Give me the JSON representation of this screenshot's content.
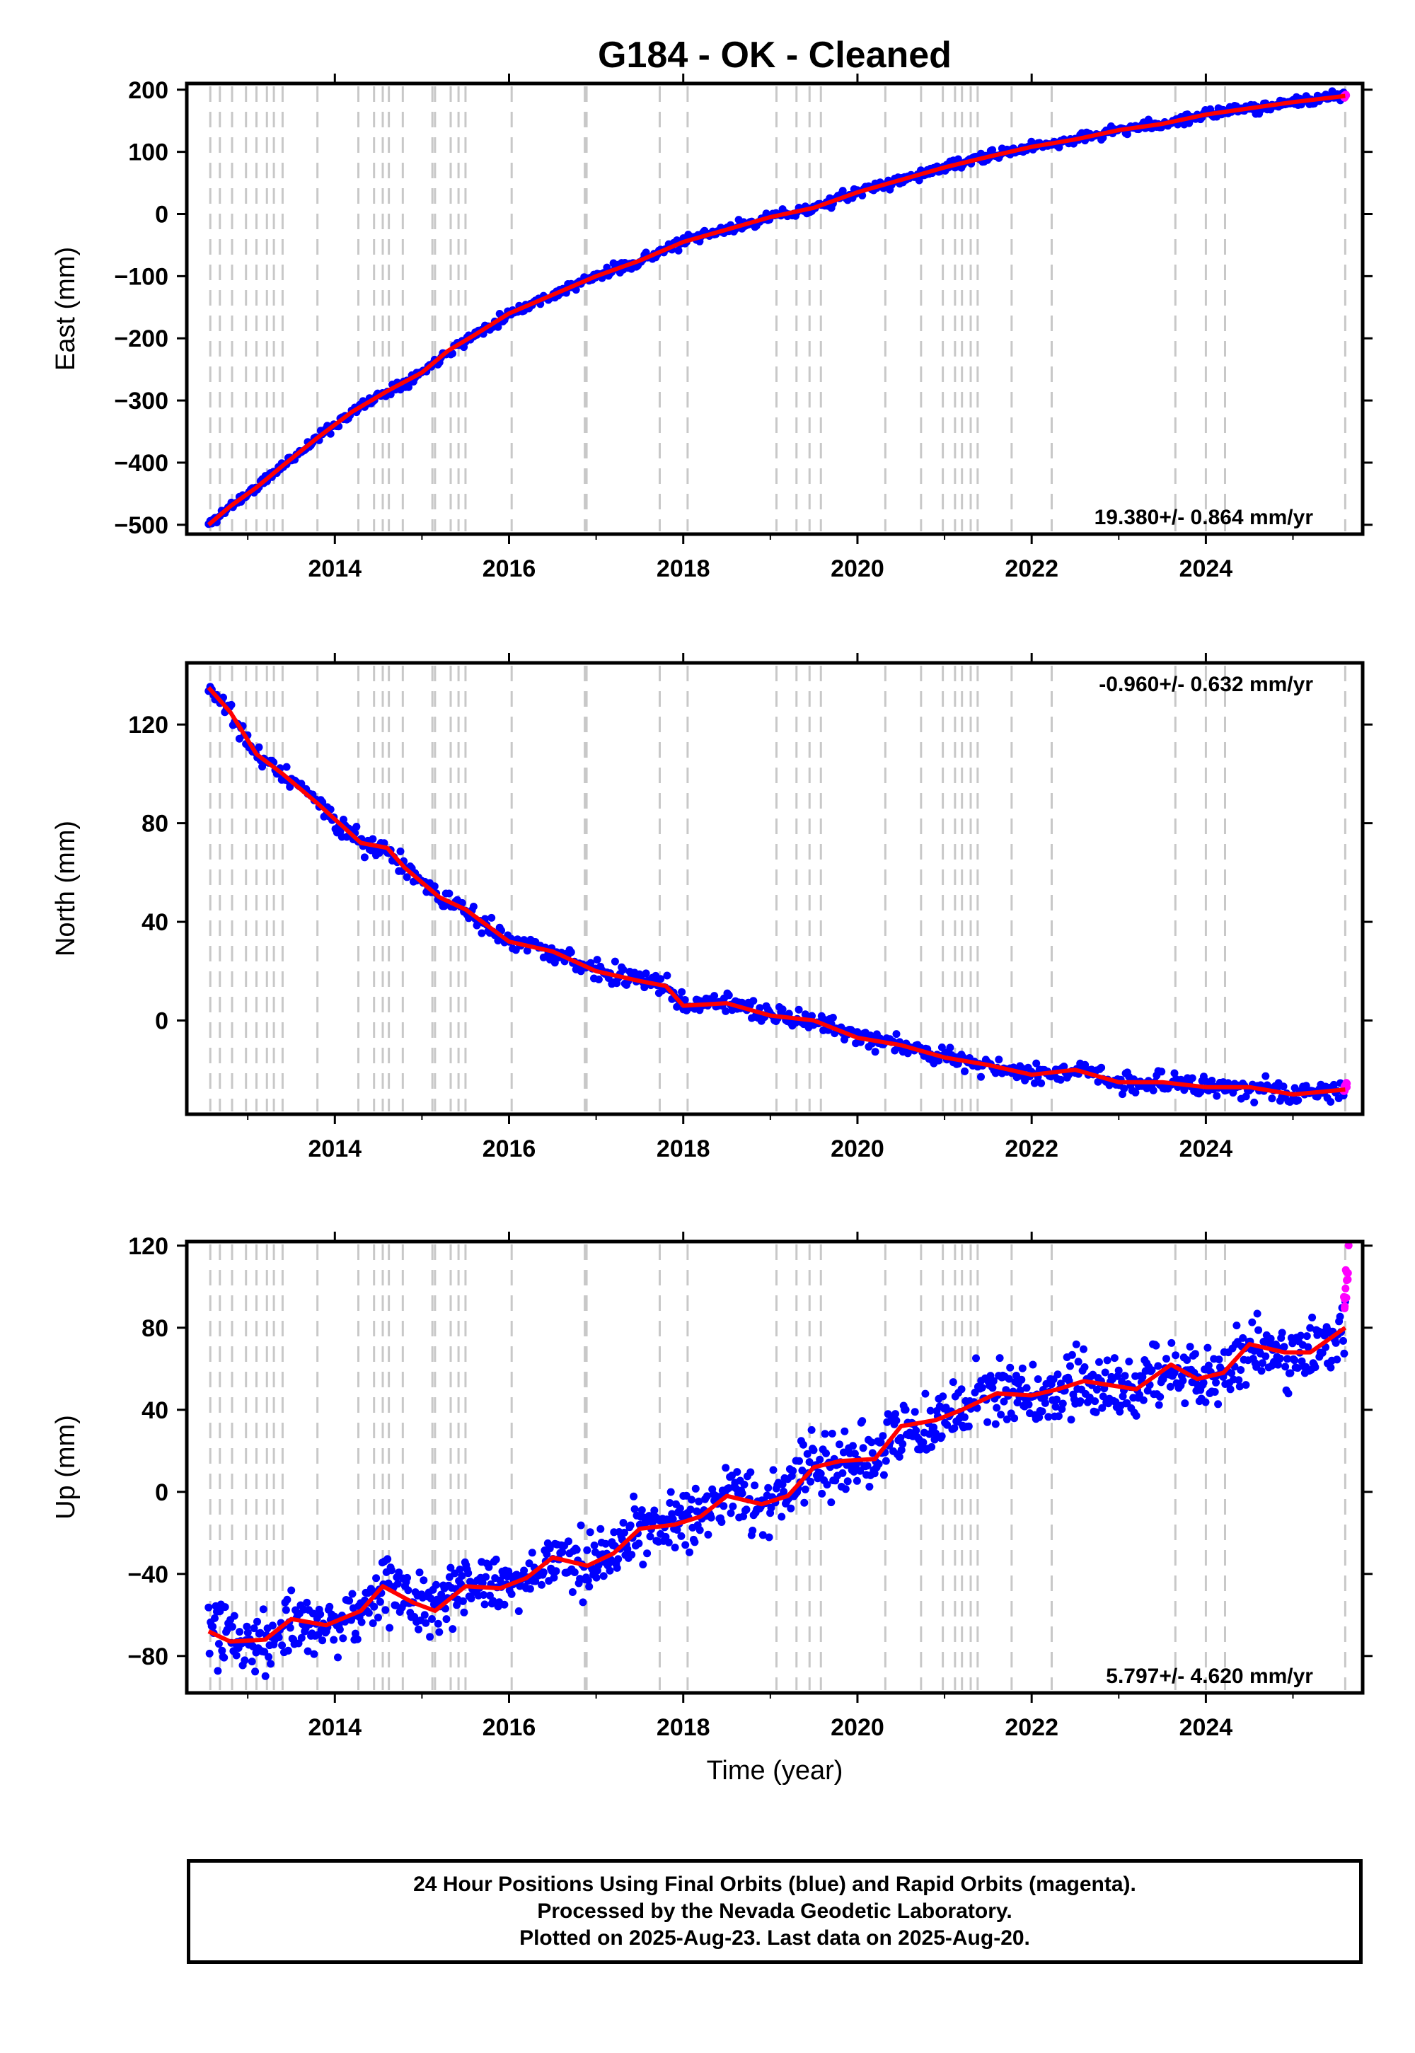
{
  "title": "G184  - OK - Cleaned",
  "xlabel": "Time (year)",
  "colors": {
    "final": "#0000ff",
    "rapid": "#ff00ff",
    "model": "#ff0000",
    "event": "#c8c8c8",
    "axis": "#000000"
  },
  "footer": {
    "line1": "24 Hour Positions Using Final Orbits (blue) and Rapid Orbits (magenta).",
    "line2": "Processed by the Nevada Geodetic Laboratory.",
    "line3": "Plotted on 2025-Aug-23. Last data on 2025-Aug-20."
  },
  "chart_data": [
    {
      "type": "scatter",
      "panel": "east",
      "title": "G184  - OK - Cleaned",
      "ylabel": "East (mm)",
      "xlim": [
        2012.3,
        2025.8
      ],
      "ylim": [
        -515,
        210
      ],
      "x_ticks": [
        2014,
        2016,
        2018,
        2020,
        2022,
        2024
      ],
      "y_ticks": [
        -500,
        -400,
        -300,
        -200,
        -100,
        0,
        100,
        200
      ],
      "rate_label": "19.380+/- 0.864 mm/yr",
      "rate_position": "bottom-right",
      "grid": false,
      "offset_lines": [
        2012.57,
        2012.68,
        2012.82,
        2012.98,
        2013.1,
        2013.22,
        2013.3,
        2013.4,
        2013.8,
        2014.27,
        2014.45,
        2014.55,
        2014.62,
        2014.78,
        2015.12,
        2015.15,
        2015.33,
        2015.42,
        2015.5,
        2016.03,
        2016.87,
        2016.89,
        2017.73,
        2018.05,
        2019.07,
        2019.3,
        2019.45,
        2019.58,
        2020.32,
        2020.73,
        2020.98,
        2021.12,
        2021.2,
        2021.3,
        2021.38,
        2021.77,
        2022.23,
        2023.65,
        2024.0,
        2024.22,
        2025.6
      ],
      "series": [
        {
          "name": "Final Orbits",
          "color": "#0000ff",
          "scatter": 6,
          "seed": 11,
          "x": [
            2012.55,
            2012.8,
            2013.1,
            2013.4,
            2013.8,
            2014.2,
            2014.6,
            2015.0,
            2015.3,
            2015.6,
            2016.0,
            2016.5,
            2017.0,
            2017.5,
            2018.0,
            2018.5,
            2019.0,
            2019.5,
            2020.0,
            2020.5,
            2021.0,
            2021.5,
            2022.0,
            2022.5,
            2023.0,
            2023.5,
            2024.0,
            2024.5,
            2025.0,
            2025.6
          ],
          "y": [
            -500,
            -470,
            -440,
            -405,
            -360,
            -318,
            -285,
            -255,
            -220,
            -195,
            -160,
            -130,
            -100,
            -75,
            -45,
            -25,
            -5,
            10,
            35,
            55,
            75,
            92,
            108,
            120,
            135,
            145,
            160,
            170,
            180,
            190
          ]
        },
        {
          "name": "Rapid Orbits",
          "color": "#ff00ff",
          "scatter": 2,
          "seed": 12,
          "x": [
            2025.58,
            2025.6,
            2025.61,
            2025.62,
            2025.63
          ],
          "y": [
            189,
            190,
            191,
            192,
            193
          ]
        }
      ],
      "model": {
        "color": "#ff0000",
        "x": [
          2012.55,
          2012.8,
          2013.1,
          2013.4,
          2013.8,
          2014.2,
          2014.6,
          2015.0,
          2015.3,
          2015.6,
          2016.0,
          2016.5,
          2017.0,
          2017.5,
          2018.0,
          2018.5,
          2019.0,
          2019.5,
          2020.0,
          2020.5,
          2021.0,
          2021.5,
          2022.0,
          2022.5,
          2023.0,
          2023.5,
          2024.0,
          2024.5,
          2025.0,
          2025.6
        ],
        "y": [
          -500,
          -470,
          -440,
          -405,
          -360,
          -318,
          -285,
          -255,
          -220,
          -195,
          -160,
          -130,
          -100,
          -75,
          -45,
          -25,
          -5,
          10,
          35,
          55,
          75,
          92,
          108,
          120,
          135,
          145,
          160,
          170,
          180,
          190
        ]
      }
    },
    {
      "type": "scatter",
      "panel": "north",
      "ylabel": "North (mm)",
      "xlim": [
        2012.3,
        2025.8
      ],
      "ylim": [
        -38,
        145
      ],
      "x_ticks": [
        2014,
        2016,
        2018,
        2020,
        2022,
        2024
      ],
      "y_ticks": [
        0,
        40,
        80,
        120
      ],
      "rate_label": "-0.960+/- 0.632 mm/yr",
      "rate_position": "top-right",
      "grid": false,
      "offset_lines": [
        2012.57,
        2012.68,
        2012.82,
        2012.98,
        2013.1,
        2013.22,
        2013.3,
        2013.4,
        2013.8,
        2014.27,
        2014.45,
        2014.55,
        2014.62,
        2014.78,
        2015.12,
        2015.15,
        2015.33,
        2015.42,
        2015.5,
        2016.03,
        2016.87,
        2016.89,
        2017.73,
        2018.05,
        2019.07,
        2019.3,
        2019.45,
        2019.58,
        2020.32,
        2020.73,
        2020.98,
        2021.12,
        2021.2,
        2021.3,
        2021.38,
        2021.77,
        2022.23,
        2023.65,
        2024.0,
        2024.22,
        2025.6
      ],
      "series": [
        {
          "name": "Final Orbits",
          "color": "#0000ff",
          "scatter": 3,
          "seed": 21,
          "x": [
            2012.55,
            2012.8,
            2013.1,
            2013.4,
            2013.8,
            2014.3,
            2014.6,
            2014.8,
            2015.2,
            2015.5,
            2016.0,
            2016.5,
            2017.0,
            2017.5,
            2017.8,
            2018.0,
            2018.5,
            2019.0,
            2019.5,
            2020.0,
            2020.5,
            2021.0,
            2021.5,
            2022.0,
            2022.5,
            2023.0,
            2023.5,
            2024.0,
            2024.5,
            2025.0,
            2025.6
          ],
          "y": [
            135,
            125,
            108,
            100,
            88,
            72,
            70,
            62,
            50,
            45,
            32,
            28,
            20,
            16,
            14,
            6,
            7,
            2,
            0,
            -7,
            -10,
            -15,
            -18,
            -22,
            -20,
            -25,
            -25,
            -27,
            -27,
            -30,
            -28
          ]
        },
        {
          "name": "Rapid Orbits",
          "color": "#ff00ff",
          "scatter": 1,
          "seed": 22,
          "x": [
            2025.58,
            2025.6,
            2025.61,
            2025.62,
            2025.63
          ],
          "y": [
            -28,
            -27,
            -26,
            -25,
            -24
          ]
        }
      ],
      "model": {
        "color": "#ff0000",
        "x": [
          2012.55,
          2012.8,
          2013.1,
          2013.4,
          2013.8,
          2014.3,
          2014.6,
          2014.8,
          2015.2,
          2015.5,
          2016.0,
          2016.5,
          2017.0,
          2017.5,
          2017.8,
          2018.0,
          2018.5,
          2019.0,
          2019.5,
          2020.0,
          2020.5,
          2021.0,
          2021.5,
          2022.0,
          2022.5,
          2023.0,
          2023.5,
          2024.0,
          2024.5,
          2025.0,
          2025.6
        ],
        "y": [
          135,
          125,
          108,
          100,
          88,
          72,
          70,
          62,
          50,
          45,
          32,
          28,
          20,
          16,
          14,
          6,
          7,
          2,
          0,
          -7,
          -10,
          -15,
          -18,
          -22,
          -20,
          -25,
          -25,
          -27,
          -27,
          -30,
          -28
        ]
      }
    },
    {
      "type": "scatter",
      "panel": "up",
      "ylabel": "Up (mm)",
      "xlim": [
        2012.3,
        2025.8
      ],
      "ylim": [
        -98,
        122
      ],
      "x_ticks": [
        2014,
        2016,
        2018,
        2020,
        2022,
        2024
      ],
      "y_ticks": [
        -80,
        -40,
        0,
        40,
        80,
        120
      ],
      "rate_label": "5.797+/- 4.620 mm/yr",
      "rate_position": "bottom-right",
      "grid": false,
      "offset_lines": [
        2012.57,
        2012.68,
        2012.82,
        2012.98,
        2013.1,
        2013.22,
        2013.3,
        2013.4,
        2013.8,
        2014.27,
        2014.45,
        2014.55,
        2014.62,
        2014.78,
        2015.12,
        2015.15,
        2015.33,
        2015.42,
        2015.5,
        2016.03,
        2016.87,
        2016.89,
        2017.73,
        2018.05,
        2019.07,
        2019.3,
        2019.45,
        2019.58,
        2020.32,
        2020.73,
        2020.98,
        2021.12,
        2021.2,
        2021.3,
        2021.38,
        2021.77,
        2022.23,
        2023.65,
        2024.0,
        2024.22,
        2025.6
      ],
      "series": [
        {
          "name": "Final Orbits",
          "color": "#0000ff",
          "scatter": 11,
          "seed": 31,
          "x": [
            2012.55,
            2012.8,
            2013.2,
            2013.5,
            2013.9,
            2014.3,
            2014.55,
            2014.9,
            2015.15,
            2015.5,
            2015.9,
            2016.2,
            2016.5,
            2016.9,
            2017.2,
            2017.5,
            2017.9,
            2018.2,
            2018.5,
            2018.9,
            2019.2,
            2019.5,
            2019.8,
            2020.2,
            2020.5,
            2020.9,
            2021.2,
            2021.6,
            2022.0,
            2022.3,
            2022.6,
            2022.9,
            2023.2,
            2023.6,
            2023.9,
            2024.2,
            2024.5,
            2024.9,
            2025.2,
            2025.6
          ],
          "y": [
            -68,
            -73,
            -72,
            -62,
            -65,
            -58,
            -46,
            -54,
            -58,
            -46,
            -47,
            -42,
            -32,
            -36,
            -30,
            -18,
            -16,
            -12,
            -2,
            -6,
            -2,
            12,
            15,
            16,
            32,
            35,
            40,
            48,
            47,
            50,
            54,
            52,
            50,
            62,
            55,
            58,
            72,
            68,
            68,
            80
          ]
        },
        {
          "name": "Rapid Orbits",
          "color": "#ff00ff",
          "scatter": 9,
          "seed": 32,
          "x": [
            2025.58,
            2025.59,
            2025.6,
            2025.61,
            2025.62,
            2025.63,
            2025.64
          ],
          "y": [
            82,
            88,
            92,
            98,
            105,
            112,
            118
          ]
        }
      ],
      "model": {
        "color": "#ff0000",
        "x": [
          2012.55,
          2012.8,
          2013.2,
          2013.5,
          2013.9,
          2014.3,
          2014.55,
          2014.9,
          2015.15,
          2015.5,
          2015.9,
          2016.2,
          2016.5,
          2016.9,
          2017.2,
          2017.5,
          2017.9,
          2018.2,
          2018.5,
          2018.9,
          2019.2,
          2019.5,
          2019.8,
          2020.2,
          2020.5,
          2020.9,
          2021.2,
          2021.6,
          2022.0,
          2022.3,
          2022.6,
          2022.9,
          2023.2,
          2023.6,
          2023.9,
          2024.2,
          2024.5,
          2024.9,
          2025.2,
          2025.6
        ],
        "y": [
          -68,
          -73,
          -72,
          -62,
          -65,
          -58,
          -46,
          -54,
          -58,
          -46,
          -47,
          -42,
          -32,
          -36,
          -30,
          -18,
          -16,
          -12,
          -2,
          -6,
          -2,
          12,
          15,
          16,
          32,
          35,
          40,
          48,
          47,
          50,
          54,
          52,
          50,
          62,
          55,
          58,
          72,
          68,
          68,
          80
        ]
      }
    }
  ]
}
